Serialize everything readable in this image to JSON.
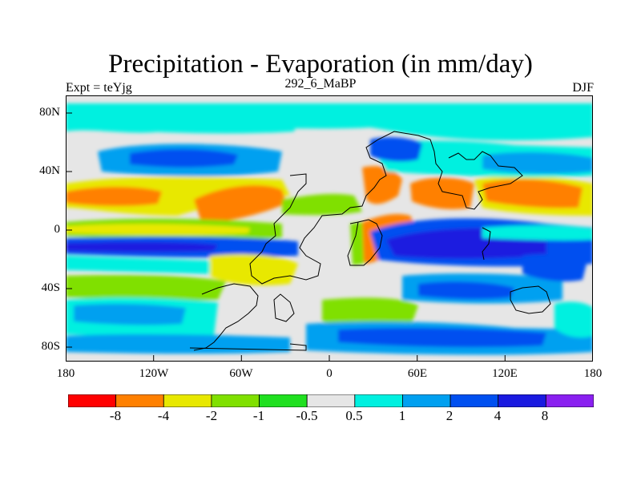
{
  "header": {
    "title": "Precipitation - Evaporation (in mm/day)",
    "left": "Expt = teYjg",
    "center": "292_6_MaBP",
    "right": "DJF"
  },
  "axes": {
    "y_ticks": [
      "80N",
      "40N",
      "0",
      "40S",
      "80S"
    ],
    "x_ticks": [
      "180",
      "120W",
      "60W",
      "0",
      "60E",
      "120E",
      "180"
    ]
  },
  "colorbar": {
    "labels": [
      "-8",
      "-4",
      "-2",
      "-1",
      "-0.5",
      "0.5",
      "1",
      "2",
      "4",
      "8"
    ],
    "colors": [
      "#ff0000",
      "#ff8000",
      "#e8e800",
      "#80e000",
      "#20e020",
      "#e6e6e6",
      "#00f0e0",
      "#00a0f0",
      "#0050f0",
      "#1a1ae0",
      "#8a20f0"
    ]
  },
  "map": {
    "background": "#e6e6e6"
  }
}
